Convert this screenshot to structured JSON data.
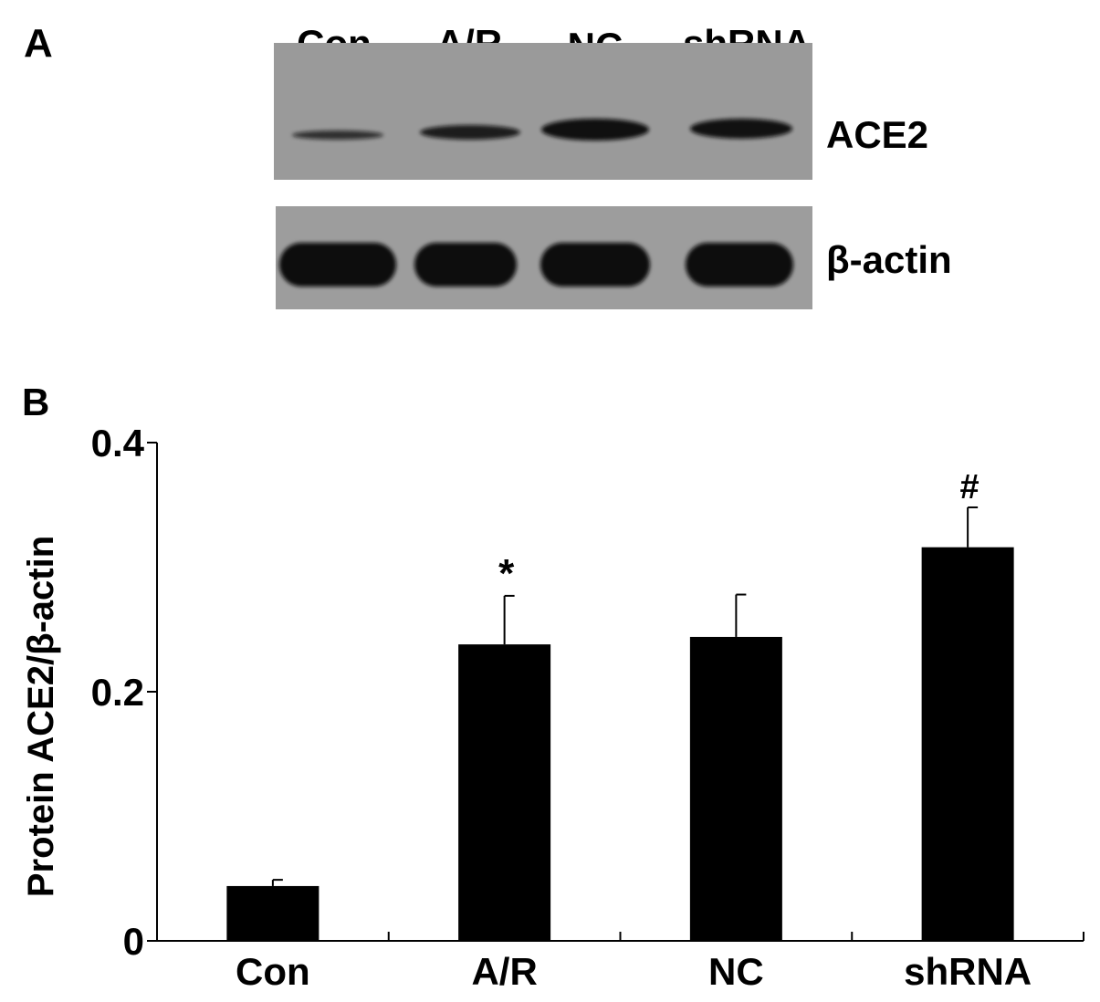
{
  "panels": {
    "a": "A",
    "b": "B"
  },
  "blot": {
    "lanes": [
      "Con",
      "A/R",
      "NC",
      "shRNA"
    ],
    "rows": [
      {
        "label": "ACE2",
        "band_intensity": [
          0.45,
          0.75,
          0.95,
          0.92
        ]
      },
      {
        "label": "β-actin",
        "band_intensity": [
          1.0,
          1.0,
          1.0,
          1.0
        ]
      }
    ],
    "colors": {
      "membrane": "#9a9a9a",
      "band": "#0d0d0d"
    }
  },
  "chart_data": {
    "type": "bar",
    "categories": [
      "Con",
      "A/R",
      "NC",
      "shRNA"
    ],
    "values": [
      0.044,
      0.238,
      0.244,
      0.316
    ],
    "errors": [
      0.005,
      0.039,
      0.034,
      0.032
    ],
    "annotations": [
      "",
      "*",
      "",
      "#"
    ],
    "ylabel": "Protein ACE2/β-actin",
    "xlabel": "",
    "ylim": [
      0,
      0.4
    ],
    "yticks": [
      0,
      0.2,
      0.4
    ],
    "ytick_labels": [
      "0",
      "0.2",
      "0.4"
    ],
    "grid": false,
    "bar_color": "#000000"
  }
}
